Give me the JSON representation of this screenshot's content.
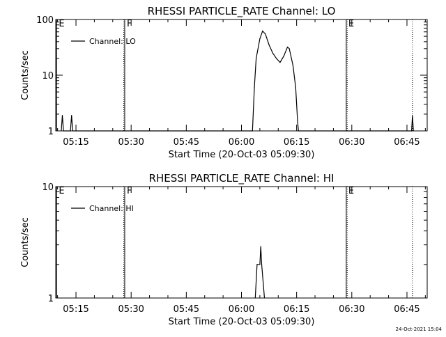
{
  "timestamp": "24-Oct-2021 15:04",
  "chart_data": [
    {
      "type": "line",
      "title": "RHESSI PARTICLE_RATE Channel: LO",
      "xlabel": "Start Time (20-Oct-03 05:09:30)",
      "ylabel": "Counts/sec",
      "yscale": "log",
      "ylim": [
        1,
        100
      ],
      "xlim": [
        "05:09:30",
        "06:50:30"
      ],
      "x_ticks": [
        "05:15",
        "05:30",
        "05:45",
        "06:00",
        "06:15",
        "06:30",
        "06:45"
      ],
      "y_ticks": [
        "1",
        "10",
        "100"
      ],
      "grid": false,
      "legend_position": "top-left",
      "series": [
        {
          "name": "Channel: LO",
          "points": [
            [
              "05:11:00",
              1
            ],
            [
              "05:11:18",
              1.9
            ],
            [
              "05:11:36",
              1
            ],
            [
              "05:13:30",
              1
            ],
            [
              "05:13:48",
              1.9
            ],
            [
              "05:14:06",
              1
            ],
            [
              "06:03:00",
              1
            ],
            [
              "06:03:30",
              6
            ],
            [
              "06:04:00",
              20
            ],
            [
              "06:05:00",
              45
            ],
            [
              "06:05:45",
              62
            ],
            [
              "06:06:30",
              55
            ],
            [
              "06:07:30",
              35
            ],
            [
              "06:08:30",
              25
            ],
            [
              "06:09:30",
              20
            ],
            [
              "06:10:30",
              17
            ],
            [
              "06:11:30",
              22
            ],
            [
              "06:12:30",
              32
            ],
            [
              "06:13:00",
              30
            ],
            [
              "06:14:00",
              15
            ],
            [
              "06:14:45",
              6
            ],
            [
              "06:15:15",
              1.5
            ],
            [
              "06:15:30",
              1
            ],
            [
              "06:46:15",
              1
            ],
            [
              "06:46:30",
              1.9
            ],
            [
              "06:46:45",
              1
            ]
          ]
        }
      ],
      "markers": [
        {
          "label": "E",
          "time": "05:09:45",
          "style": "solid"
        },
        {
          "label": "F",
          "time": "05:28:15",
          "style": "solid"
        },
        {
          "label": "E",
          "time": "06:28:30",
          "style": "solid"
        },
        {
          "time": "05:28:00",
          "style": "dotted"
        },
        {
          "time": "06:28:45",
          "style": "dotted"
        },
        {
          "time": "06:46:30",
          "style": "dotted"
        }
      ]
    },
    {
      "type": "line",
      "title": "RHESSI PARTICLE_RATE Channel: HI",
      "xlabel": "Start Time (20-Oct-03 05:09:30)",
      "ylabel": "Counts/sec",
      "yscale": "log",
      "ylim": [
        1,
        10
      ],
      "xlim": [
        "05:09:30",
        "06:50:30"
      ],
      "x_ticks": [
        "05:15",
        "05:30",
        "05:45",
        "06:00",
        "06:15",
        "06:30",
        "06:45"
      ],
      "y_ticks": [
        "1",
        "10"
      ],
      "grid": false,
      "legend_position": "top-left",
      "series": [
        {
          "name": "Channel: HI",
          "points": [
            [
              "06:03:45",
              1
            ],
            [
              "06:04:15",
              2.0
            ],
            [
              "06:05:00",
              2.0
            ],
            [
              "06:05:15",
              2.9
            ],
            [
              "06:05:30",
              2.0
            ],
            [
              "06:06:15",
              1
            ]
          ]
        }
      ],
      "markers": [
        {
          "label": "E",
          "time": "05:09:45",
          "style": "solid"
        },
        {
          "label": "F",
          "time": "05:28:15",
          "style": "solid"
        },
        {
          "label": "E",
          "time": "06:28:30",
          "style": "solid"
        },
        {
          "time": "05:28:00",
          "style": "dotted"
        },
        {
          "time": "06:28:45",
          "style": "dotted"
        },
        {
          "time": "06:46:30",
          "style": "dotted"
        }
      ]
    }
  ]
}
